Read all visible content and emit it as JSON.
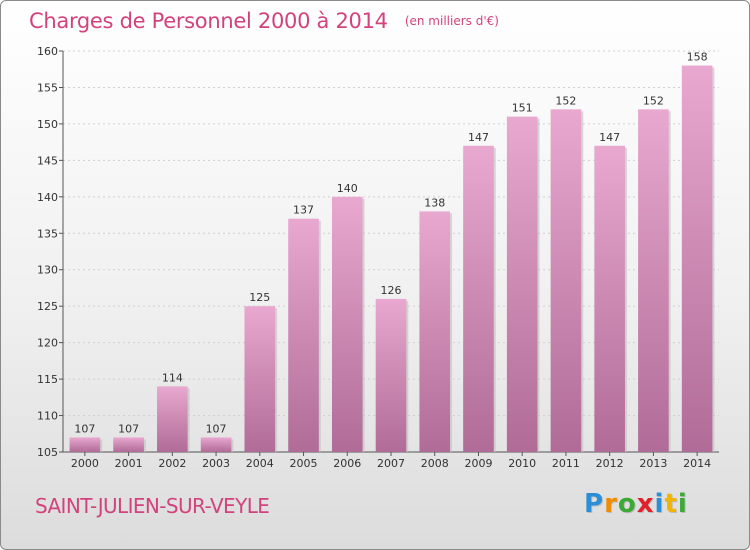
{
  "title": "Charges de Personnel 2000 à 2014",
  "subtitle": "(en milliers d'€)",
  "commune": "SAINT-JULIEN-SUR-VEYLE",
  "logo": {
    "letters": [
      "P",
      "r",
      "o",
      "x",
      "i",
      "t",
      "i"
    ],
    "colors": [
      "#2a8fd6",
      "#f08c00",
      "#3aaa35",
      "#e0202a",
      "#2a8fd6",
      "#f2b400",
      "#3aaa35"
    ]
  },
  "chart_data": {
    "type": "bar",
    "categories": [
      "2000",
      "2001",
      "2002",
      "2003",
      "2004",
      "2005",
      "2006",
      "2007",
      "2008",
      "2009",
      "2010",
      "2011",
      "2012",
      "2013",
      "2014"
    ],
    "values": [
      107,
      107,
      114,
      107,
      125,
      137,
      140,
      126,
      138,
      147,
      151,
      152,
      147,
      152,
      158
    ],
    "data_labels": [
      "107",
      "107",
      "114",
      "107",
      "125",
      "137",
      "140",
      "126",
      "138",
      "147",
      "151",
      "152",
      "147",
      "152",
      "158"
    ],
    "ylim": [
      105,
      160
    ],
    "yticks": [
      105,
      110,
      115,
      120,
      125,
      130,
      135,
      140,
      145,
      150,
      155,
      160
    ],
    "grid": true,
    "bar_color_top": "#e8a8cf",
    "bar_color_bottom": "#b06c97"
  }
}
